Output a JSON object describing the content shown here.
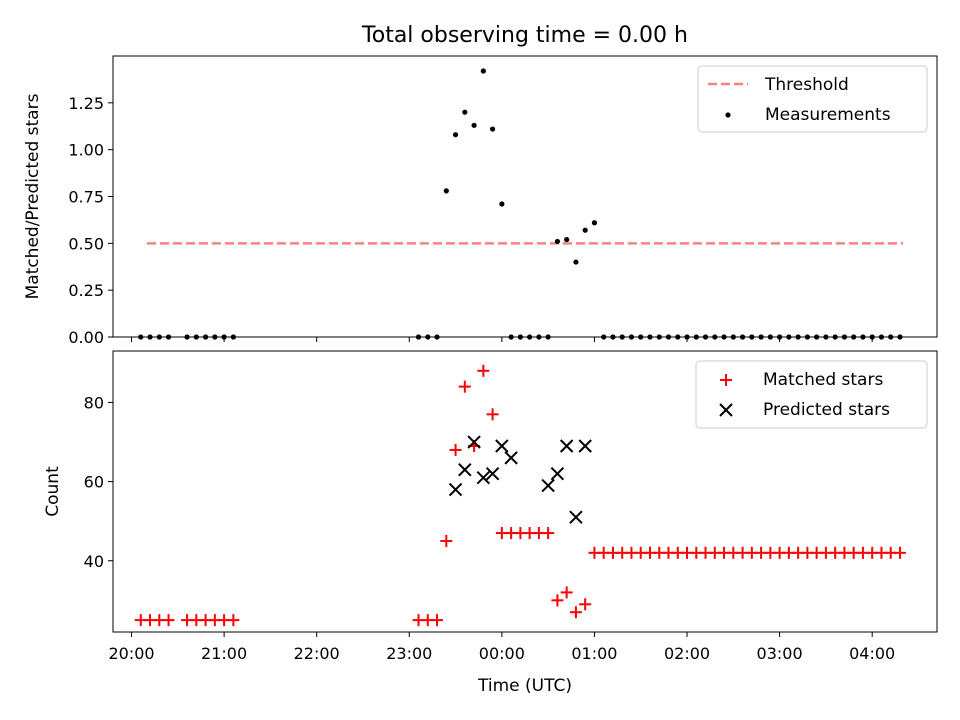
{
  "figure": {
    "title": "Total observing time = 0.00 h"
  },
  "colors": {
    "threshold": "#ff8080",
    "measurement": "#000000",
    "matched": "#ff0000",
    "predicted": "#000000"
  },
  "chart_data": [
    {
      "type": "scatter",
      "title": "Total observing time = 0.00 h",
      "xlabel": "",
      "ylabel": "Matched/Predicted stars",
      "ylim": [
        0,
        1.5
      ],
      "yticks": [
        "0.00",
        "0.25",
        "0.50",
        "0.75",
        "1.00",
        "1.25"
      ],
      "ytick_values": [
        0,
        0.25,
        0.5,
        0.75,
        1.0,
        1.25
      ],
      "legend_position": "top-right",
      "threshold": {
        "name": "Threshold",
        "value": 0.5,
        "x_range": [
          "20:10",
          "04:20"
        ]
      },
      "series": [
        {
          "name": "Measurements",
          "x": [
            "20:06",
            "20:12",
            "20:18",
            "20:24",
            "20:36",
            "20:42",
            "20:48",
            "20:54",
            "21:00",
            "21:06",
            "23:06",
            "23:12",
            "23:18",
            "23:24",
            "23:30",
            "23:36",
            "23:42",
            "23:48",
            "23:54",
            "00:00",
            "00:06",
            "00:12",
            "00:18",
            "00:24",
            "00:30",
            "00:36",
            "00:42",
            "00:48",
            "00:54",
            "01:00",
            "01:06",
            "01:12",
            "01:18",
            "01:24",
            "01:30",
            "01:36",
            "01:42",
            "01:48",
            "01:54",
            "02:00",
            "02:06",
            "02:12",
            "02:18",
            "02:24",
            "02:30",
            "02:36",
            "02:42",
            "02:48",
            "02:54",
            "03:00",
            "03:06",
            "03:12",
            "03:18",
            "03:24",
            "03:30",
            "03:36",
            "03:42",
            "03:48",
            "03:54",
            "04:00",
            "04:06",
            "04:12",
            "04:18"
          ],
          "y": [
            0,
            0,
            0,
            0,
            0,
            0,
            0,
            0,
            0,
            0,
            0,
            0,
            0,
            0.78,
            1.08,
            1.2,
            1.13,
            1.42,
            1.11,
            0.71,
            0,
            0,
            0,
            0,
            0,
            0.51,
            0.52,
            0.4,
            0.57,
            0.61,
            0,
            0,
            0,
            0,
            0,
            0,
            0,
            0,
            0,
            0,
            0,
            0,
            0,
            0,
            0,
            0,
            0,
            0,
            0,
            0,
            0,
            0,
            0,
            0,
            0,
            0,
            0,
            0,
            0,
            0,
            0,
            0,
            0
          ]
        }
      ]
    },
    {
      "type": "scatter",
      "xlabel": "Time (UTC)",
      "ylabel": "Count",
      "ylim": [
        22,
        93
      ],
      "yticks": [
        "40",
        "60",
        "80"
      ],
      "ytick_values": [
        40,
        60,
        80
      ],
      "xlim": [
        "19:48",
        "04:42"
      ],
      "xticks": [
        "20:00",
        "21:00",
        "22:00",
        "23:00",
        "00:00",
        "01:00",
        "02:00",
        "03:00",
        "04:00"
      ],
      "legend_position": "top-right",
      "series": [
        {
          "name": "Matched stars",
          "x": [
            "20:06",
            "20:12",
            "20:18",
            "20:24",
            "20:36",
            "20:42",
            "20:48",
            "20:54",
            "21:00",
            "21:06",
            "23:06",
            "23:12",
            "23:18",
            "23:24",
            "23:30",
            "23:36",
            "23:42",
            "23:48",
            "23:54",
            "00:00",
            "00:06",
            "00:12",
            "00:18",
            "00:24",
            "00:30",
            "00:36",
            "00:42",
            "00:48",
            "00:54",
            "01:00",
            "01:06",
            "01:12",
            "01:18",
            "01:24",
            "01:30",
            "01:36",
            "01:42",
            "01:48",
            "01:54",
            "02:00",
            "02:06",
            "02:12",
            "02:18",
            "02:24",
            "02:30",
            "02:36",
            "02:42",
            "02:48",
            "02:54",
            "03:00",
            "03:06",
            "03:12",
            "03:18",
            "03:24",
            "03:30",
            "03:36",
            "03:42",
            "03:48",
            "03:54",
            "04:00",
            "04:06",
            "04:12",
            "04:18"
          ],
          "y": [
            25,
            25,
            25,
            25,
            25,
            25,
            25,
            25,
            25,
            25,
            25,
            25,
            25,
            45,
            68,
            84,
            69,
            88,
            77,
            47,
            47,
            47,
            47,
            47,
            47,
            30,
            32,
            27,
            29,
            42,
            42,
            42,
            42,
            42,
            42,
            42,
            42,
            42,
            42,
            42,
            42,
            42,
            42,
            42,
            42,
            42,
            42,
            42,
            42,
            42,
            42,
            42,
            42,
            42,
            42,
            42,
            42,
            42,
            42,
            42,
            42,
            42,
            42
          ]
        },
        {
          "name": "Predicted stars",
          "x": [
            "23:30",
            "23:36",
            "23:42",
            "23:48",
            "23:54",
            "00:00",
            "00:06",
            "00:30",
            "00:36",
            "00:42",
            "00:48",
            "00:54"
          ],
          "y": [
            58,
            63,
            70,
            61,
            62,
            69,
            66,
            59,
            62,
            69,
            51,
            69
          ]
        }
      ]
    }
  ]
}
